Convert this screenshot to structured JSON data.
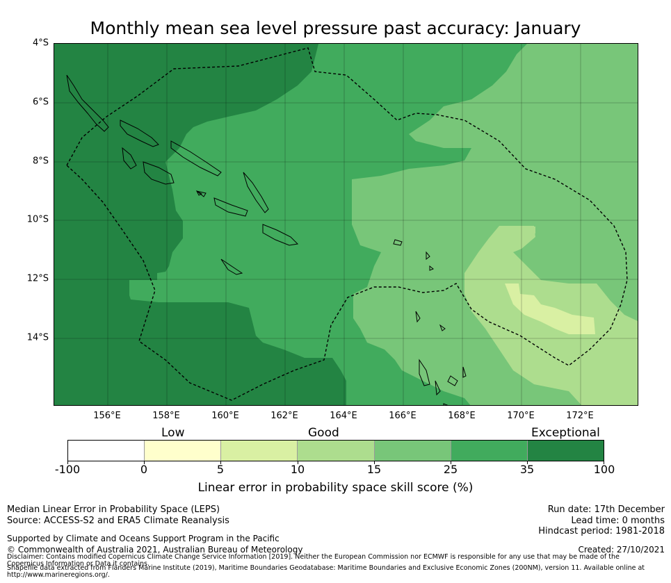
{
  "title": "Monthly mean sea level pressure past accuracy: January",
  "map": {
    "lat_labels": [
      "4°S",
      "6°S",
      "8°S",
      "10°S",
      "12°S",
      "14°S"
    ],
    "lon_labels": [
      "156°E",
      "158°E",
      "160°E",
      "162°E",
      "164°E",
      "166°E",
      "168°E",
      "170°E",
      "172°E"
    ],
    "lat_range": [
      -4,
      -16.3
    ],
    "lon_range": [
      154.2,
      174.0
    ]
  },
  "colorbar": {
    "categories": [
      "Low",
      "Good",
      "Exceptional"
    ],
    "ticks": [
      "-100",
      "0",
      "5",
      "10",
      "15",
      "25",
      "35",
      "100"
    ],
    "colors": [
      "#ffffff",
      "#ffffcc",
      "#d9f0a3",
      "#addd8e",
      "#78c679",
      "#41ab5d",
      "#238443"
    ],
    "label": "Linear error in probability space skill score (%)"
  },
  "footer": {
    "left_line1": "Median Linear Error in Probability Space (LEPS)",
    "left_line2": "Source: ACCESS-S2 and ERA5 Climate Reanalysis",
    "supported": "Supported by Climate and Oceans Support Program in the Pacific",
    "copyright": "© Commonwealth of Australia 2021, Australian Bureau of Meteorology",
    "disclaimer": "Disclaimer: Contains modified Copernicus Climate Change Service Information [2019]. Neither the European Commission nor ECMWF is responsible for any use that may be made of the Copernicus Information or Data it contains.",
    "shapefile": "Shapefile data extracted from Flanders Marine Institute (2019), Maritime Boundaries Geodatabase: Maritime Boundaries and Exclusive Economic Zones (200NM), version 11. Available online at http://www.marineregions.org/.",
    "run_date": "Run date: 17th December",
    "lead_time": "Lead time: 0 months",
    "hindcast": "Hindcast period: 1981-2018",
    "created": "Created: 27/10/2021"
  }
}
